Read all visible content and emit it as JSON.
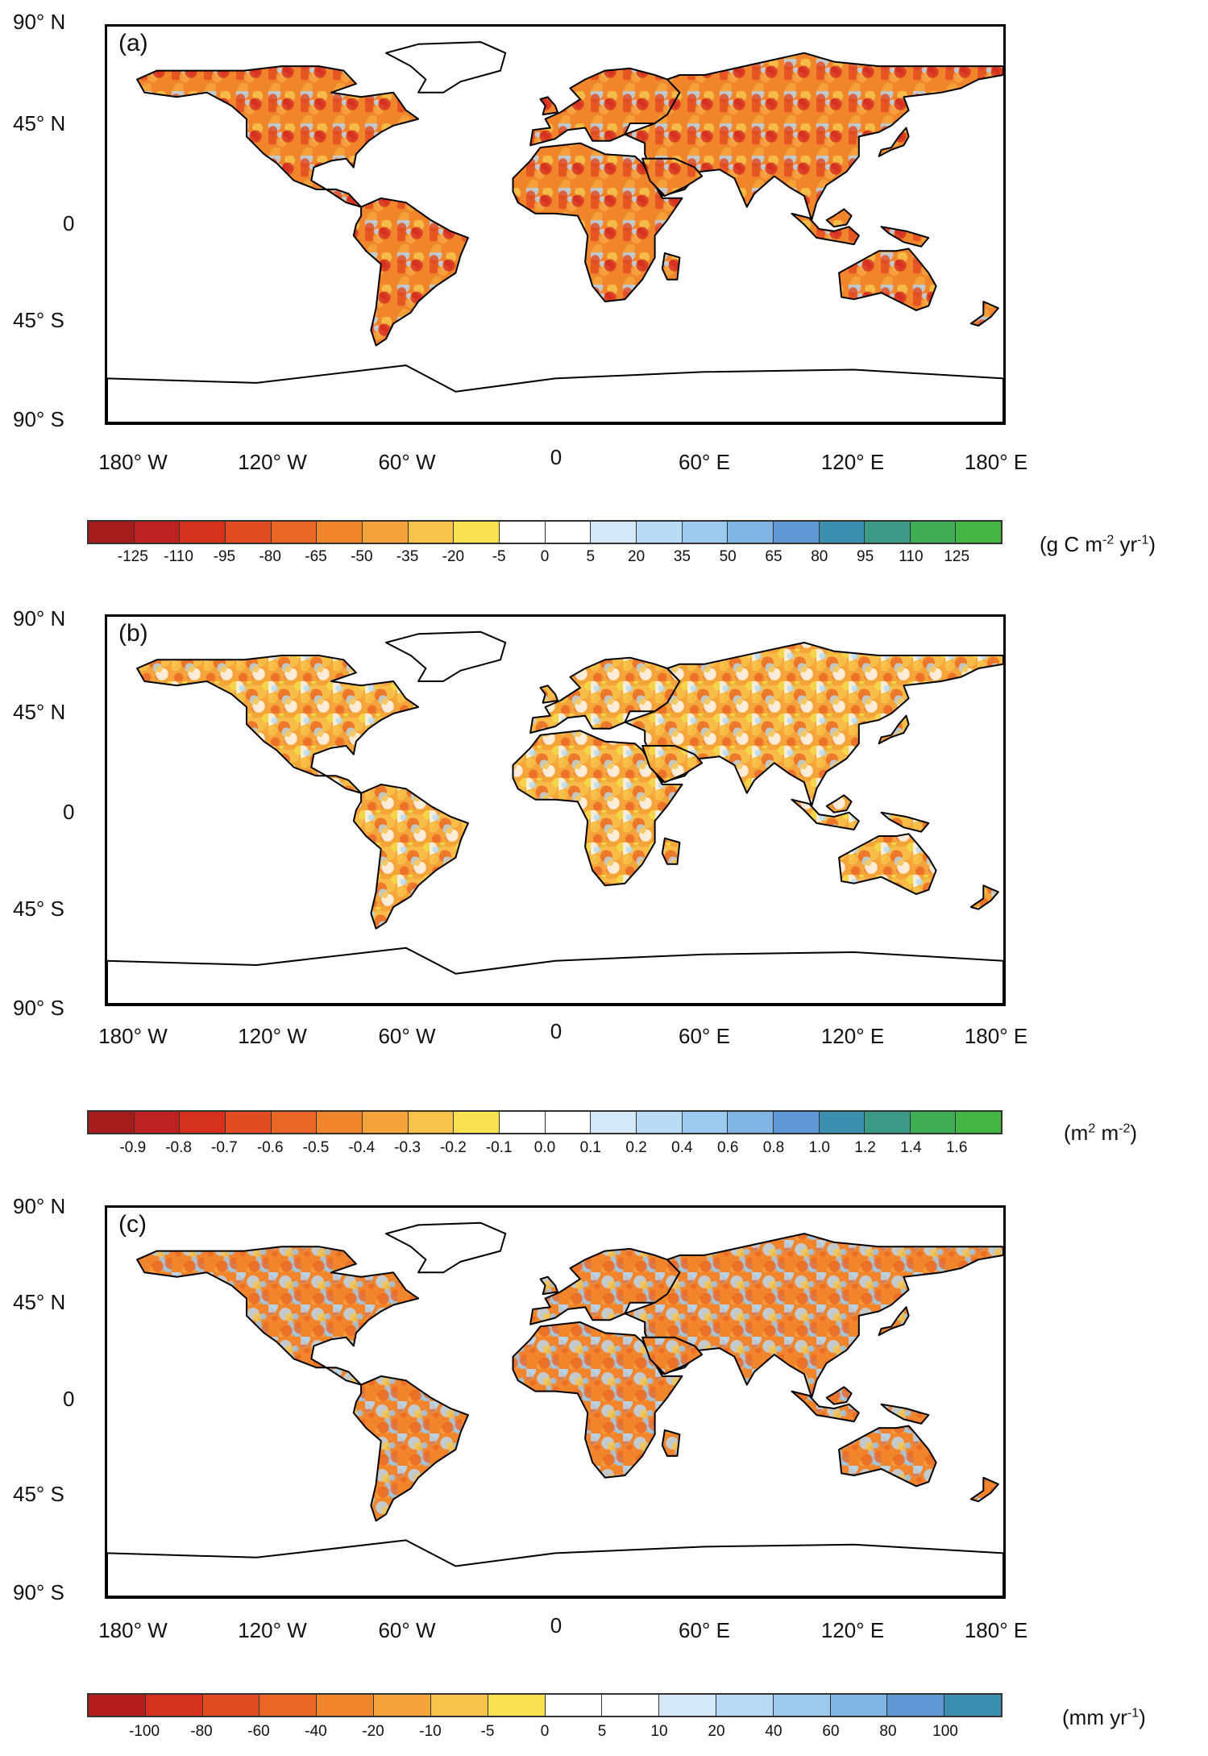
{
  "latitude_labels": [
    "90° N",
    "45° N",
    "0",
    "45° S",
    "90° S"
  ],
  "longitude_labels": [
    "180° W",
    "120° W",
    "60° W",
    "0",
    "60° E",
    "120° E",
    "180° E"
  ],
  "panels": [
    {
      "label": "(a)",
      "unit_main": "(g C m",
      "unit_sup1": "-2",
      "unit_mid": " yr",
      "unit_sup2": "-1",
      "unit_end": ")",
      "ticks": [
        "-125",
        "-110",
        "-95",
        "-80",
        "-65",
        "-50",
        "-35",
        "-20",
        "-5",
        "0",
        "5",
        "20",
        "35",
        "50",
        "65",
        "80",
        "95",
        "110",
        "125"
      ],
      "colors": [
        "#a61c1c",
        "#bf2020",
        "#d6301f",
        "#e24a20",
        "#ea6624",
        "#f0852c",
        "#f5a43a",
        "#f8c34a",
        "#f8e14e",
        "#ffffff",
        "#ffffff",
        "#d4e8f8",
        "#b9dbf4",
        "#9ccbee",
        "#7fb4e3",
        "#5e98d4",
        "#3d8fb0",
        "#3a9a85",
        "#3fae55",
        "#43b644"
      ]
    },
    {
      "label": "(b)",
      "unit_main": "(m",
      "unit_sup1": "2",
      "unit_mid": " m",
      "unit_sup2": "-2",
      "unit_end": ")",
      "ticks": [
        "-0.9",
        "-0.8",
        "-0.7",
        "-0.6",
        "-0.5",
        "-0.4",
        "-0.3",
        "-0.2",
        "-0.1",
        "0.0",
        "0.1",
        "0.2",
        "0.4",
        "0.6",
        "0.8",
        "1.0",
        "1.2",
        "1.4",
        "1.6"
      ],
      "colors": [
        "#a61c1c",
        "#bf2020",
        "#d6301f",
        "#e24a20",
        "#ea6624",
        "#f0852c",
        "#f5a43a",
        "#f8c34a",
        "#f8e14e",
        "#ffffff",
        "#ffffff",
        "#d4e8f8",
        "#b9dbf4",
        "#9ccbee",
        "#7fb4e3",
        "#5e98d4",
        "#3d8fb0",
        "#3a9a85",
        "#3fae55",
        "#43b644"
      ]
    },
    {
      "label": "(c)",
      "unit_main": "(mm yr",
      "unit_sup1": "-1",
      "unit_mid": "",
      "unit_sup2": "",
      "unit_end": ")",
      "ticks": [
        "-100",
        "-80",
        "-60",
        "-40",
        "-20",
        "-10",
        "-5",
        "0",
        "5",
        "10",
        "20",
        "40",
        "60",
        "80",
        "100"
      ],
      "colors": [
        "#b71c1c",
        "#d6301f",
        "#e24a20",
        "#ea6624",
        "#f0852c",
        "#f5a43a",
        "#f8c34a",
        "#f8e14e",
        "#ffffff",
        "#ffffff",
        "#d4e8f8",
        "#b9dbf4",
        "#9ccbee",
        "#7fb4e3",
        "#5e98d4",
        "#3d8fb0"
      ]
    }
  ]
}
